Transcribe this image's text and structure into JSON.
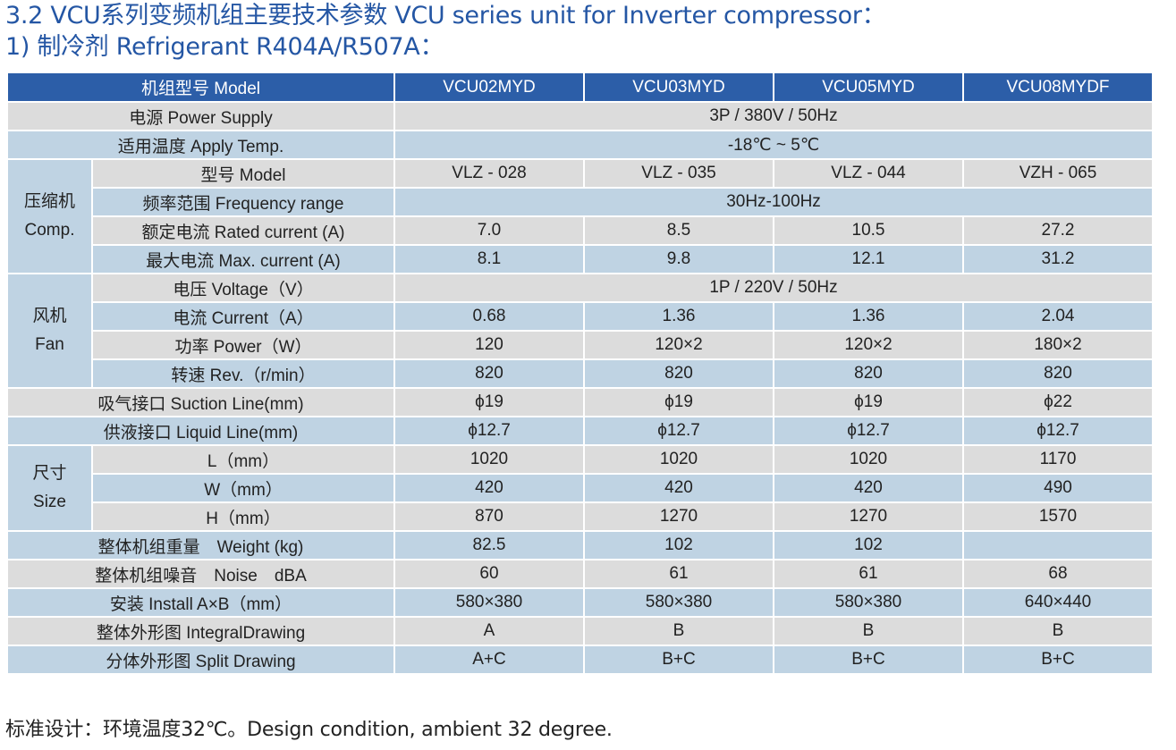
{
  "title_line1": "3.2 VCU系列变频机组主要技术参数 VCU series unit for Inverter compressor：",
  "title_line2": "1) 制冷剂 Refrigerant R404A/R507A：",
  "header": {
    "label": "机组型号 Model",
    "models": [
      "VCU02MYD",
      "VCU03MYD",
      "VCU05MYD",
      "VCU08MYDF"
    ]
  },
  "power_supply": {
    "label": "电源 Power Supply",
    "value": "3P / 380V / 50Hz"
  },
  "apply_temp": {
    "label": "适用温度 Apply Temp.",
    "value": "-18℃ ~ 5℃"
  },
  "compressor": {
    "group_cn": "压缩机",
    "group_en": "Comp.",
    "model": {
      "label": "型号 Model",
      "values": [
        "VLZ - 028",
        "VLZ - 035",
        "VLZ - 044",
        "VZH - 065"
      ]
    },
    "frequency": {
      "label": "频率范围 Frequency range",
      "value": "30Hz-100Hz"
    },
    "rated_current": {
      "label": "额定电流 Rated current (A)",
      "values": [
        "7.0",
        "8.5",
        "10.5",
        "27.2"
      ]
    },
    "max_current": {
      "label": "最大电流 Max. current (A)",
      "values": [
        "8.1",
        "9.8",
        "12.1",
        "31.2"
      ]
    }
  },
  "fan": {
    "group_cn": "风机",
    "group_en": "Fan",
    "voltage": {
      "label": "电压 Voltage（V）",
      "value": "1P / 220V / 50Hz"
    },
    "current": {
      "label": "电流 Current（A）",
      "values": [
        "0.68",
        "1.36",
        "1.36",
        "2.04"
      ]
    },
    "power": {
      "label": "功率 Power（W）",
      "values": [
        "120",
        "120×2",
        "120×2",
        "180×2"
      ]
    },
    "rev": {
      "label": "转速 Rev.（r/min）",
      "values": [
        "820",
        "820",
        "820",
        "820"
      ]
    }
  },
  "suction": {
    "label": "吸气接口 Suction Line(mm)",
    "values": [
      "ϕ19",
      "ϕ19",
      "ϕ19",
      "ϕ22"
    ]
  },
  "liquid": {
    "label": "供液接口 Liquid Line(mm)",
    "values": [
      "ϕ12.7",
      "ϕ12.7",
      "ϕ12.7",
      "ϕ12.7"
    ]
  },
  "size": {
    "group_cn": "尺寸",
    "group_en": "Size",
    "l": {
      "label": "L（mm）",
      "values": [
        "1020",
        "1020",
        "1020",
        "1170"
      ]
    },
    "w": {
      "label": "W（mm）",
      "values": [
        "420",
        "420",
        "420",
        "490"
      ]
    },
    "h": {
      "label": "H（mm）",
      "values": [
        "870",
        "1270",
        "1270",
        "1570"
      ]
    }
  },
  "weight": {
    "label": "整体机组重量　Weight (kg)",
    "values": [
      "82.5",
      "102",
      "102",
      ""
    ]
  },
  "noise": {
    "label": "整体机组噪音　Noise　dBA",
    "values": [
      "60",
      "61",
      "61",
      "68"
    ]
  },
  "install": {
    "label": "安装 Install A×B（mm）",
    "values": [
      "580×380",
      "580×380",
      "580×380",
      "640×440"
    ]
  },
  "integral": {
    "label": "整体外形图 IntegralDrawing",
    "values": [
      "A",
      "B",
      "B",
      "B"
    ]
  },
  "split": {
    "label": "分体外形图 Split Drawing",
    "values": [
      "A+C",
      "B+C",
      "B+C",
      "B+C"
    ]
  },
  "note": "标准设计：环境温度32℃。Design condition, ambient 32 degree."
}
